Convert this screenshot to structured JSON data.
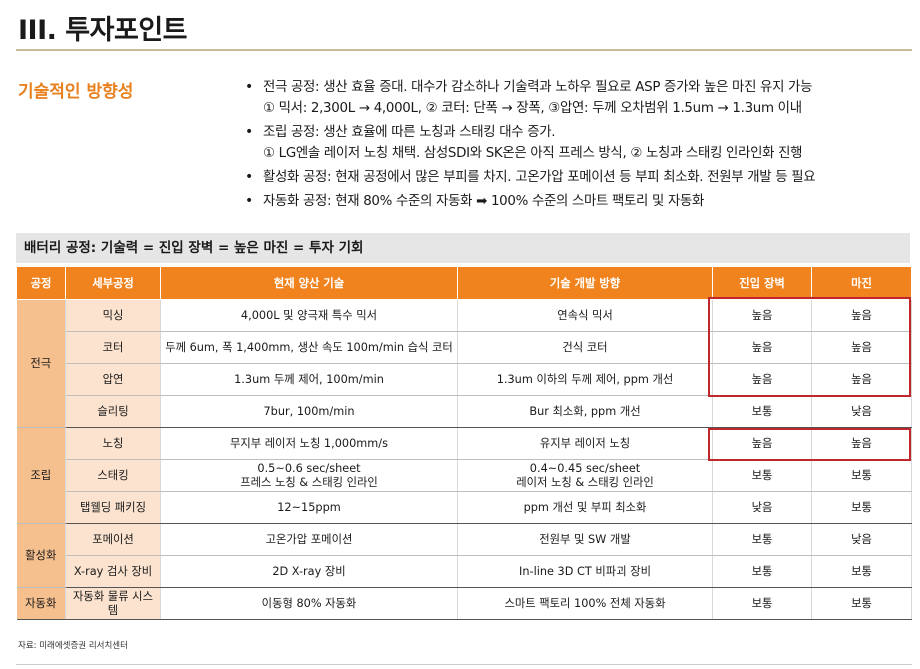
{
  "page": {
    "title": "III. 투자포인트",
    "section_label": "기술적인 방향성",
    "source": "자료: 미래에셋증권 리서치센터"
  },
  "bullets": [
    {
      "lines": [
        "전극 공정: 생산 효율 증대. 대수가 감소하나 기술력과 노하우 필요로 ASP 증가와 높은 마진 유지 가능",
        "① 믹서: 2,300L → 4,000L, ② 코터: 단폭 → 장폭,  ③압연: 두께 오차범위 1.5um → 1.3um 이내"
      ]
    },
    {
      "lines": [
        "조립 공정: 생산 효율에 따른 노칭과 스태킹 대수 증가.",
        "① LG엔솔 레이저 노칭 채택. 삼성SDI와 SK온은 아직 프레스 방식, ② 노칭과 스태킹 인라인화 진행"
      ]
    },
    {
      "lines": [
        "활성화 공정: 현재 공정에서 많은 부피를 차지. 고온가압 포메이션 등 부피 최소화. 전원부 개발 등 필요"
      ]
    },
    {
      "lines": [
        "자동화 공정: 현재 80% 수준의 자동화 ➡ 100% 수준의 스마트 팩토리 및 자동화"
      ]
    }
  ],
  "bullet_glyph": "•",
  "table": {
    "banner": "배터리 공정: 기술력 = 진입 장벽 = 높은 마진 = 투자 기회",
    "headers": [
      "공정",
      "세부공정",
      "현재 양산 기술",
      "기술 개발 방향",
      "진입 장벽",
      "마진"
    ],
    "groups": [
      {
        "name": "전극",
        "rows": [
          {
            "sub": "믹싱",
            "current": "4,000L 및 양극재 특수 믹서",
            "direction": "연속식 믹서",
            "barrier": "높음",
            "margin": "높음"
          },
          {
            "sub": "코터",
            "current": "두께 6um, 폭 1,400mm, 생산 속도 100m/min 습식 코터",
            "direction": "건식 코터",
            "barrier": "높음",
            "margin": "높음"
          },
          {
            "sub": "압연",
            "current": "1.3um 두께 제어, 100m/min",
            "direction": "1.3um 이하의 두께 제어, ppm 개선",
            "barrier": "높음",
            "margin": "높음"
          },
          {
            "sub": "슬리팅",
            "current": "7bur, 100m/min",
            "direction": "Bur 최소화, ppm 개선",
            "barrier": "보통",
            "margin": "낮음"
          }
        ]
      },
      {
        "name": "조립",
        "rows": [
          {
            "sub": "노칭",
            "current": "무지부 레이저 노칭 1,000mm/s",
            "direction": "유지부 레이저 노칭",
            "barrier": "높음",
            "margin": "높음"
          },
          {
            "sub": "스태킹",
            "current": [
              "0.5~0.6 sec/sheet",
              "프레스 노칭 & 스태킹 인라인"
            ],
            "direction": [
              "0.4~0.45 sec/sheet",
              "레이저 노칭 & 스태킹 인라인"
            ],
            "barrier": "보통",
            "margin": "보통"
          },
          {
            "sub": "탭웰딩 패키징",
            "current": "12~15ppm",
            "direction": "ppm 개선 및 부피 최소화",
            "barrier": "낮음",
            "margin": "보통"
          }
        ]
      },
      {
        "name": "활성화",
        "rows": [
          {
            "sub": "포메이션",
            "current": "고온가압 포메이션",
            "direction": "전원부 및 SW 개발",
            "barrier": "보통",
            "margin": "낮음"
          },
          {
            "sub": "X-ray 검사 장비",
            "current": "2D X-ray 장비",
            "direction": "In-line 3D CT 비파괴 장비",
            "barrier": "보통",
            "margin": "보통"
          }
        ]
      },
      {
        "name": "자동화",
        "rows": [
          {
            "sub": "자동화 물류 시스템",
            "current": "이동형 80% 자동화",
            "direction": "스마트 팩토리 100% 전체 자동화",
            "barrier": "보통",
            "margin": "보통"
          }
        ]
      }
    ]
  },
  "colors": {
    "accent_orange": "#f0831e",
    "category_fill": "#f6bf8e",
    "subprocess_fill": "#fbe3cf",
    "highlight_red": "#c0272d",
    "banner_gray": "#e6e6e6"
  }
}
